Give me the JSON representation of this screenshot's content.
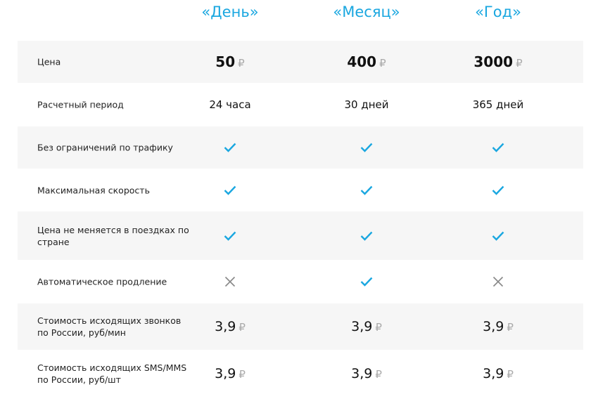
{
  "plans": [
    "«День»",
    "«Месяц»",
    "«Год»"
  ],
  "currency": "₽",
  "colors": {
    "accent": "#1aa7e0",
    "check": "#1aa7e0",
    "cross": "#888888"
  },
  "rows": [
    {
      "label": "Цена",
      "type": "price",
      "values": [
        "50",
        "400",
        "3000"
      ]
    },
    {
      "label": "Расчетный период",
      "type": "text",
      "values": [
        "24 часа",
        "30 дней",
        "365 дней"
      ]
    },
    {
      "label": "Без ограничений по трафику",
      "type": "icon",
      "values": [
        "check-icon",
        "check-icon",
        "check-icon"
      ]
    },
    {
      "label": "Максимальная скорость",
      "type": "icon",
      "values": [
        "check-icon",
        "check-icon",
        "check-icon"
      ]
    },
    {
      "label": "Цена не меняется в поездках по стране",
      "type": "icon",
      "values": [
        "check-icon",
        "check-icon",
        "check-icon"
      ]
    },
    {
      "label": "Автоматическое продление",
      "type": "icon",
      "values": [
        "cross-icon",
        "check-icon",
        "cross-icon"
      ]
    },
    {
      "label": "Стоимость исходящих звонков по России, руб/мин",
      "type": "num",
      "values": [
        "3,9",
        "3,9",
        "3,9"
      ]
    },
    {
      "label": "Стоимость исходящих SMS/MMS по России, руб/шт",
      "type": "num",
      "values": [
        "3,9",
        "3,9",
        "3,9"
      ]
    }
  ]
}
